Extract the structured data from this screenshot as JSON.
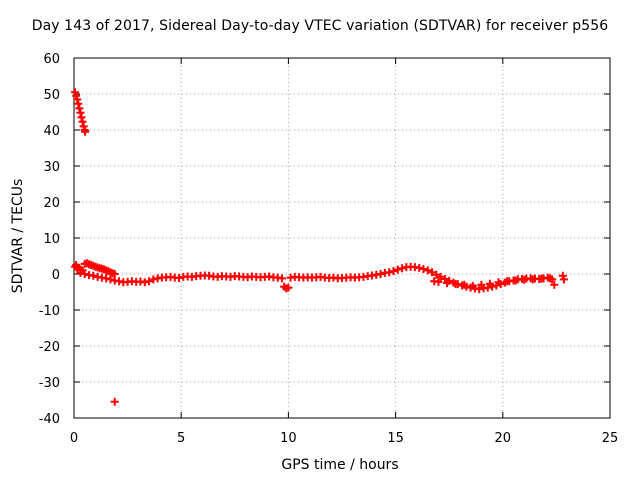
{
  "chart_data": {
    "type": "scatter",
    "title": "Day 143 of 2017, Sidereal Day-to-day VTEC variation (SDTVAR) for receiver p556",
    "xlabel": "GPS time / hours",
    "ylabel": "SDTVAR / TECUs",
    "xlim": [
      0,
      25
    ],
    "ylim": [
      -40,
      60
    ],
    "xticks": [
      "0",
      "5",
      "10",
      "15",
      "20",
      "25"
    ],
    "yticks": [
      "60",
      "50",
      "40",
      "30",
      "20",
      "10",
      "0",
      "-10",
      "-20",
      "-30",
      "-40"
    ],
    "grid": true,
    "marker": "plus",
    "color": "#ff0000",
    "series": [
      {
        "name": "SDTVAR",
        "points": [
          [
            0.05,
            50.5
          ],
          [
            0.1,
            49.5
          ],
          [
            0.15,
            48.5
          ],
          [
            0.2,
            47.3
          ],
          [
            0.25,
            46.0
          ],
          [
            0.3,
            44.8
          ],
          [
            0.35,
            43.5
          ],
          [
            0.4,
            42.3
          ],
          [
            0.45,
            41.0
          ],
          [
            0.5,
            40.0
          ],
          [
            0.52,
            39.5
          ],
          [
            1.9,
            -35.5
          ],
          [
            0.05,
            2.0
          ],
          [
            0.1,
            2.5
          ],
          [
            0.15,
            1.5
          ],
          [
            0.2,
            1.8
          ],
          [
            0.3,
            1.2
          ],
          [
            0.4,
            1.0
          ],
          [
            0.5,
            2.8
          ],
          [
            0.6,
            3.0
          ],
          [
            0.7,
            2.7
          ],
          [
            0.8,
            2.5
          ],
          [
            0.9,
            2.3
          ],
          [
            1.0,
            2.0
          ],
          [
            1.1,
            1.8
          ],
          [
            1.2,
            1.6
          ],
          [
            1.3,
            1.5
          ],
          [
            1.4,
            1.3
          ],
          [
            1.5,
            1.0
          ],
          [
            1.6,
            0.8
          ],
          [
            1.7,
            0.5
          ],
          [
            1.8,
            0.2
          ],
          [
            1.9,
            0.0
          ],
          [
            0.3,
            0.3
          ],
          [
            0.5,
            0.0
          ],
          [
            0.7,
            -0.3
          ],
          [
            0.9,
            -0.5
          ],
          [
            1.1,
            -0.8
          ],
          [
            1.3,
            -1.0
          ],
          [
            1.5,
            -1.2
          ],
          [
            1.7,
            -1.5
          ],
          [
            1.9,
            -1.8
          ],
          [
            2.1,
            -2.0
          ],
          [
            2.3,
            -2.3
          ],
          [
            2.5,
            -2.2
          ],
          [
            2.7,
            -2.0
          ],
          [
            2.9,
            -2.2
          ],
          [
            3.1,
            -2.1
          ],
          [
            3.3,
            -2.3
          ],
          [
            3.5,
            -2.0
          ],
          [
            3.7,
            -1.5
          ],
          [
            3.9,
            -1.2
          ],
          [
            4.1,
            -1.0
          ],
          [
            4.3,
            -0.9
          ],
          [
            4.5,
            -0.8
          ],
          [
            4.7,
            -1.0
          ],
          [
            4.9,
            -1.1
          ],
          [
            5.1,
            -0.8
          ],
          [
            5.3,
            -0.7
          ],
          [
            5.5,
            -0.8
          ],
          [
            5.7,
            -0.6
          ],
          [
            5.9,
            -0.5
          ],
          [
            6.1,
            -0.4
          ],
          [
            6.3,
            -0.5
          ],
          [
            6.5,
            -0.7
          ],
          [
            6.7,
            -0.8
          ],
          [
            6.9,
            -0.6
          ],
          [
            7.1,
            -0.7
          ],
          [
            7.3,
            -0.8
          ],
          [
            7.5,
            -0.6
          ],
          [
            7.7,
            -0.7
          ],
          [
            7.9,
            -0.8
          ],
          [
            8.1,
            -0.9
          ],
          [
            8.3,
            -0.7
          ],
          [
            8.5,
            -0.8
          ],
          [
            8.7,
            -0.9
          ],
          [
            8.9,
            -0.8
          ],
          [
            9.1,
            -0.7
          ],
          [
            9.3,
            -0.9
          ],
          [
            9.5,
            -1.0
          ],
          [
            9.7,
            -1.2
          ],
          [
            9.8,
            -3.5
          ],
          [
            9.9,
            -4.0
          ],
          [
            10.0,
            -3.8
          ],
          [
            10.1,
            -1.0
          ],
          [
            10.3,
            -0.8
          ],
          [
            10.5,
            -0.9
          ],
          [
            10.7,
            -1.0
          ],
          [
            10.9,
            -0.9
          ],
          [
            11.1,
            -1.0
          ],
          [
            11.3,
            -0.9
          ],
          [
            11.5,
            -0.8
          ],
          [
            11.7,
            -1.0
          ],
          [
            11.9,
            -1.1
          ],
          [
            12.1,
            -1.0
          ],
          [
            12.3,
            -1.2
          ],
          [
            12.5,
            -1.1
          ],
          [
            12.7,
            -1.0
          ],
          [
            12.9,
            -0.9
          ],
          [
            13.1,
            -1.0
          ],
          [
            13.3,
            -0.9
          ],
          [
            13.5,
            -0.8
          ],
          [
            13.7,
            -0.6
          ],
          [
            13.9,
            -0.4
          ],
          [
            14.1,
            -0.2
          ],
          [
            14.3,
            0.0
          ],
          [
            14.5,
            0.3
          ],
          [
            14.7,
            0.5
          ],
          [
            14.9,
            0.8
          ],
          [
            15.1,
            1.2
          ],
          [
            15.3,
            1.6
          ],
          [
            15.5,
            1.9
          ],
          [
            15.7,
            2.0
          ],
          [
            15.9,
            1.9
          ],
          [
            16.1,
            1.7
          ],
          [
            16.3,
            1.4
          ],
          [
            16.5,
            1.0
          ],
          [
            16.7,
            0.5
          ],
          [
            16.9,
            -0.2
          ],
          [
            17.1,
            -0.8
          ],
          [
            17.3,
            -1.4
          ],
          [
            17.5,
            -1.9
          ],
          [
            17.7,
            -2.4
          ],
          [
            17.9,
            -2.8
          ],
          [
            18.1,
            -3.2
          ],
          [
            18.3,
            -3.5
          ],
          [
            18.5,
            -3.8
          ],
          [
            18.7,
            -4.0
          ],
          [
            18.9,
            -4.2
          ],
          [
            19.1,
            -4.0
          ],
          [
            19.3,
            -3.8
          ],
          [
            19.5,
            -3.5
          ],
          [
            19.7,
            -3.2
          ],
          [
            19.9,
            -2.8
          ],
          [
            20.1,
            -2.4
          ],
          [
            20.3,
            -2.0
          ],
          [
            20.5,
            -1.8
          ],
          [
            20.7,
            -1.5
          ],
          [
            20.9,
            -1.4
          ],
          [
            21.1,
            -1.3
          ],
          [
            21.3,
            -1.2
          ],
          [
            21.5,
            -1.3
          ],
          [
            21.7,
            -1.4
          ],
          [
            21.9,
            -1.2
          ],
          [
            22.1,
            -1.0
          ],
          [
            22.3,
            -1.5
          ],
          [
            22.4,
            -3.0
          ],
          [
            22.8,
            -0.5
          ],
          [
            22.85,
            -1.5
          ],
          [
            16.8,
            -2.0
          ],
          [
            17.0,
            -2.2
          ],
          [
            17.4,
            -2.5
          ],
          [
            17.8,
            -2.8
          ],
          [
            18.2,
            -3.0
          ],
          [
            18.6,
            -3.3
          ],
          [
            19.0,
            -3.0
          ],
          [
            19.4,
            -2.7
          ],
          [
            19.8,
            -2.3
          ],
          [
            20.2,
            -2.0
          ],
          [
            20.6,
            -1.8
          ],
          [
            21.0,
            -1.6
          ],
          [
            21.4,
            -1.5
          ],
          [
            21.8,
            -1.3
          ],
          [
            22.2,
            -1.2
          ]
        ]
      }
    ]
  }
}
